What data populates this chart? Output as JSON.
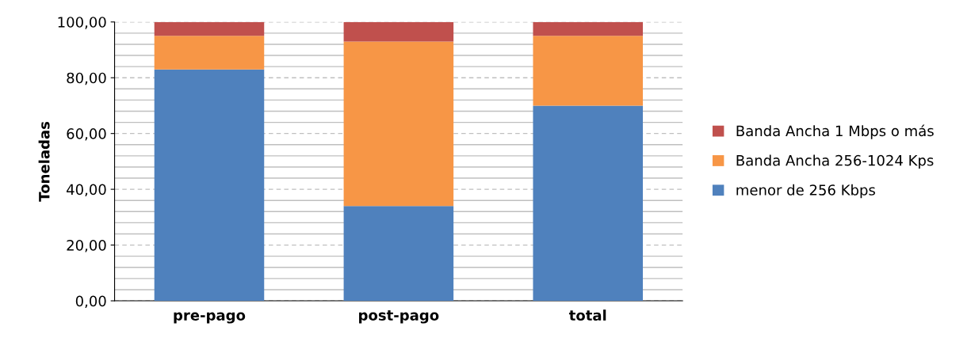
{
  "chart_data": {
    "type": "bar",
    "stacked": true,
    "ylabel": "Toneladas",
    "categories": [
      "pre-pago",
      "post-pago",
      "total"
    ],
    "series": [
      {
        "name": "menor de 256 Kbps",
        "color": "#4f81bd",
        "values": [
          83,
          34,
          70
        ]
      },
      {
        "name": "Banda Ancha 256-1024 Kps",
        "color": "#f79646",
        "values": [
          12,
          59,
          25
        ]
      },
      {
        "name": "Banda Ancha 1 Mbps o más",
        "color": "#c0504d",
        "values": [
          5,
          7,
          5
        ]
      }
    ],
    "ylim": [
      0,
      100
    ],
    "yticks": [
      {
        "value": 0,
        "label": "0,00"
      },
      {
        "value": 4,
        "label": null
      },
      {
        "value": 8,
        "label": null
      },
      {
        "value": 12,
        "label": null
      },
      {
        "value": 16,
        "label": null
      },
      {
        "value": 20,
        "label": "20,00"
      },
      {
        "value": 24,
        "label": null
      },
      {
        "value": 28,
        "label": null
      },
      {
        "value": 32,
        "label": null
      },
      {
        "value": 36,
        "label": null
      },
      {
        "value": 40,
        "label": "40,00"
      },
      {
        "value": 44,
        "label": null
      },
      {
        "value": 48,
        "label": null
      },
      {
        "value": 52,
        "label": null
      },
      {
        "value": 56,
        "label": null
      },
      {
        "value": 60,
        "label": "60,00"
      },
      {
        "value": 64,
        "label": null
      },
      {
        "value": 68,
        "label": null
      },
      {
        "value": 72,
        "label": null
      },
      {
        "value": 76,
        "label": null
      },
      {
        "value": 80,
        "label": "80,00"
      },
      {
        "value": 84,
        "label": null
      },
      {
        "value": 88,
        "label": null
      },
      {
        "value": 92,
        "label": null
      },
      {
        "value": 96,
        "label": null
      },
      {
        "value": 100,
        "label": "100,00"
      }
    ],
    "grid": "y",
    "legend": "right"
  }
}
